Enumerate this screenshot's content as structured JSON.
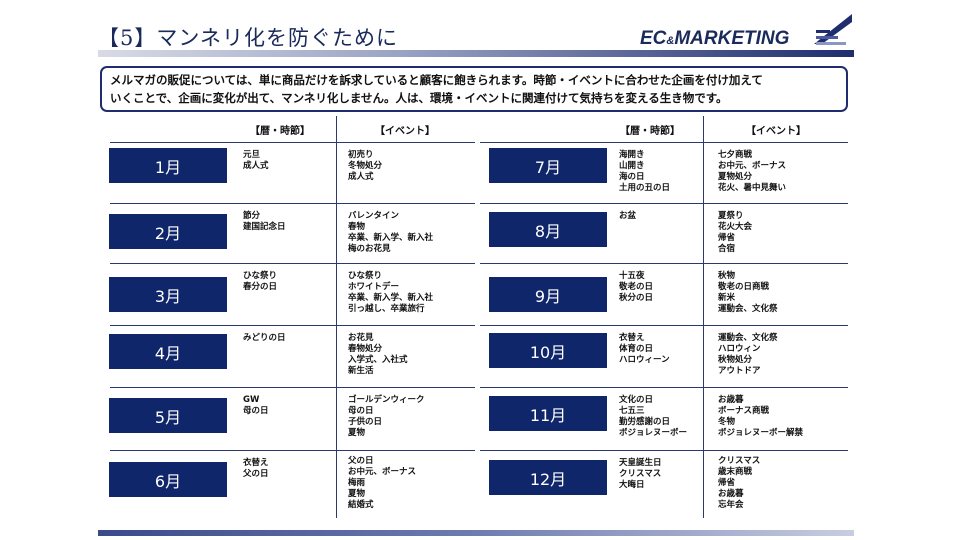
{
  "title": "【5】マンネリ化を防ぐために",
  "logo": {
    "main": "EC",
    "amp": "&",
    "rest": "MARKETING"
  },
  "intro": [
    "メルマガの販促については、単に商品だけを訴求していると顧客に飽きられます。時節・イベントに合わせた企画を付け加えて",
    "いくことで、企画に変化が出て、マンネリ化しません。人は、環境・イベントに関連付けて気持ちを変える生き物です。"
  ],
  "headers": {
    "calendar": "【暦・時節】",
    "event": "【イベント】"
  },
  "months": [
    {
      "label": "1月",
      "calendar": [
        "元旦",
        "成人式"
      ],
      "events": [
        "初売り",
        "冬物処分",
        "成人式"
      ]
    },
    {
      "label": "2月",
      "calendar": [
        "節分",
        "建国記念日"
      ],
      "events": [
        "バレンタイン",
        "春物",
        "卒業、新入学、新入社",
        "梅のお花見"
      ]
    },
    {
      "label": "3月",
      "calendar": [
        "ひな祭り",
        "春分の日"
      ],
      "events": [
        "ひな祭り",
        "ホワイトデー",
        "卒業、新入学、新入社",
        "引っ越し、卒業旅行"
      ]
    },
    {
      "label": "4月",
      "calendar": [
        "みどりの日"
      ],
      "events": [
        "お花見",
        "春物処分",
        "入学式、入社式",
        "新生活"
      ]
    },
    {
      "label": "5月",
      "calendar": [
        "GW",
        "母の日"
      ],
      "events": [
        "ゴールデンウィーク",
        "母の日",
        "子供の日",
        "夏物"
      ]
    },
    {
      "label": "6月",
      "calendar": [
        "衣替え",
        "父の日"
      ],
      "events": [
        "父の日",
        "お中元、ボーナス",
        "梅雨",
        "夏物",
        "結婚式"
      ]
    },
    {
      "label": "7月",
      "calendar": [
        "海開き",
        "山開き",
        "海の日",
        "土用の丑の日"
      ],
      "events": [
        "七夕商戦",
        "お中元、ボーナス",
        "夏物処分",
        "花火、暑中見舞い"
      ]
    },
    {
      "label": "8月",
      "calendar": [
        "お盆"
      ],
      "events": [
        "夏祭り",
        "花火大会",
        "帰省",
        "合宿"
      ]
    },
    {
      "label": "9月",
      "calendar": [
        "十五夜",
        "敬老の日",
        "秋分の日"
      ],
      "events": [
        "秋物",
        "敬老の日商戦",
        "新米",
        "運動会、文化祭"
      ]
    },
    {
      "label": "10月",
      "calendar": [
        "衣替え",
        "体育の日",
        "ハロウィーン"
      ],
      "events": [
        "運動会、文化祭",
        "ハロウィン",
        "秋物処分",
        "アウトドア"
      ]
    },
    {
      "label": "11月",
      "calendar": [
        "文化の日",
        "七五三",
        "勤労感謝の日",
        "ボジョレヌーボー"
      ],
      "events": [
        "お歳暮",
        "ボーナス商戦",
        "冬物",
        "ボジョレヌーボー解禁"
      ]
    },
    {
      "label": "12月",
      "calendar": [
        "天皇誕生日",
        "クリスマス",
        "大晦日"
      ],
      "events": [
        "クリスマス",
        "歳末商戦",
        "帰省",
        "お歳暮",
        "忘年会"
      ]
    }
  ]
}
